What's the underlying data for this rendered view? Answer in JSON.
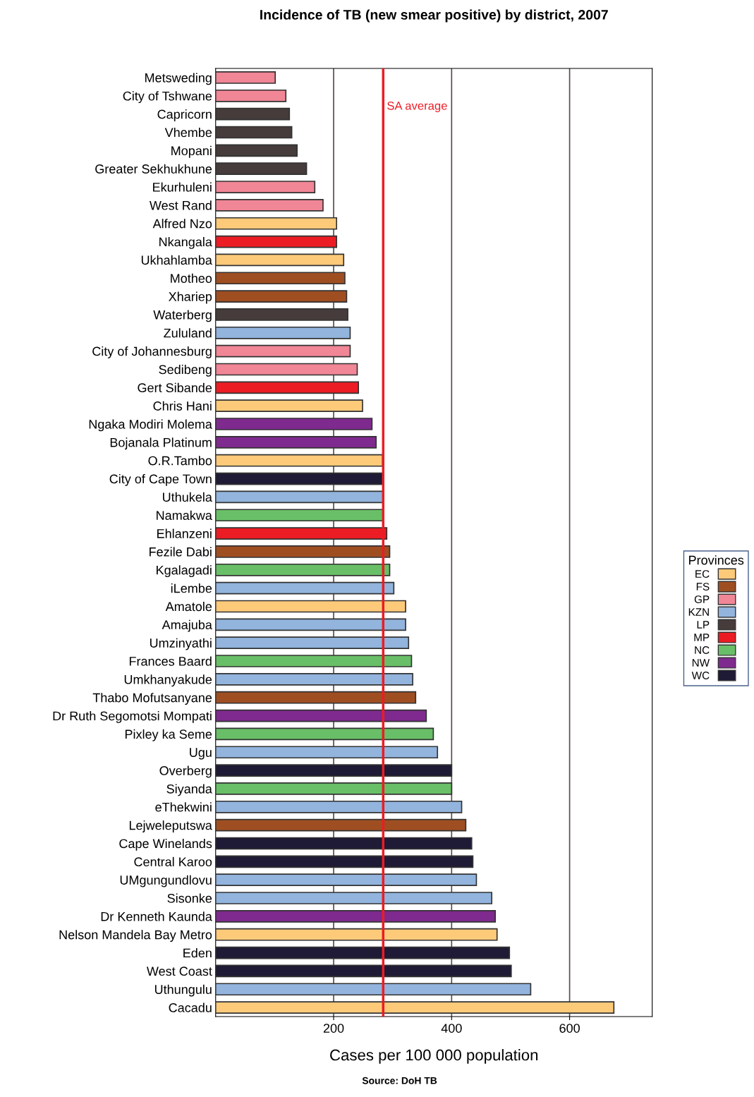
{
  "chart_data": {
    "type": "bar",
    "orientation": "horizontal",
    "title": "Incidence of TB (new smear positive) by district, 2007",
    "xlabel": "Cases per 100 000 population",
    "legend_title": "Provinces",
    "legend": "right",
    "grid": "x",
    "xlim": [
      0,
      740
    ],
    "xticks": [
      200,
      400,
      600
    ],
    "categories": [
      "Metsweding",
      "City of Tshwane",
      "Capricorn",
      "Vhembe",
      "Mopani",
      "Greater Sekhukhune",
      "Ekurhuleni",
      "West Rand",
      "Alfred Nzo",
      "Nkangala",
      "Ukhahlamba",
      "Motheo",
      "Xhariep",
      "Waterberg",
      "Zululand",
      "City of Johannesburg",
      "Sedibeng",
      "Gert Sibande",
      "Chris Hani",
      "Ngaka Modiri Molema",
      "Bojanala Platinum",
      "O.R.Tambo",
      "City of Cape Town",
      "Uthukela",
      "Namakwa",
      "Ehlanzeni",
      "Fezile Dabi",
      "Kgalagadi",
      "iLembe",
      "Amatole",
      "Amajuba",
      "Umzinyathi",
      "Frances Baard",
      "Umkhanyakude",
      "Thabo Mofutsanyane",
      "Dr Ruth Segomotsi Mompati",
      "Pixley ka Seme",
      "Ugu",
      "Overberg",
      "Siyanda",
      "eThekwini",
      "Lejweleputswa",
      "Cape Winelands",
      "Central Karoo",
      "UMgungundlovu",
      "Sisonke",
      "Dr Kenneth Kaunda",
      "Nelson Mandela Bay Metro",
      "Eden",
      "West Coast",
      "Uthungulu",
      "Cacadu"
    ],
    "series": [
      {
        "name": "EC",
        "color": "#fdca7a",
        "values": [
          null,
          null,
          null,
          null,
          null,
          null,
          null,
          null,
          205,
          null,
          217,
          null,
          null,
          null,
          null,
          null,
          null,
          null,
          249,
          null,
          null,
          283,
          null,
          null,
          null,
          null,
          null,
          null,
          null,
          322,
          null,
          null,
          null,
          null,
          null,
          null,
          null,
          null,
          null,
          null,
          null,
          null,
          null,
          null,
          null,
          null,
          null,
          477,
          null,
          null,
          null,
          675
        ]
      },
      {
        "name": "FS",
        "color": "#9f4e22",
        "values": [
          null,
          null,
          null,
          null,
          null,
          null,
          null,
          null,
          null,
          null,
          null,
          219,
          222,
          null,
          null,
          null,
          null,
          null,
          null,
          null,
          null,
          null,
          null,
          null,
          null,
          null,
          295,
          null,
          null,
          null,
          null,
          null,
          null,
          null,
          339,
          null,
          null,
          null,
          null,
          null,
          null,
          424,
          null,
          null,
          null,
          null,
          null,
          null,
          null,
          null,
          null,
          null
        ]
      },
      {
        "name": "GP",
        "color": "#f08696",
        "values": [
          101,
          119,
          null,
          null,
          null,
          null,
          168,
          182,
          null,
          null,
          null,
          null,
          null,
          null,
          null,
          228,
          240,
          null,
          null,
          null,
          null,
          null,
          null,
          null,
          null,
          null,
          null,
          null,
          null,
          null,
          null,
          null,
          null,
          null,
          null,
          null,
          null,
          null,
          null,
          null,
          null,
          null,
          null,
          null,
          null,
          null,
          null,
          null,
          null,
          null,
          null,
          null
        ]
      },
      {
        "name": "KZN",
        "color": "#92b4dd",
        "values": [
          null,
          null,
          null,
          null,
          null,
          null,
          null,
          null,
          null,
          null,
          null,
          null,
          null,
          null,
          228,
          null,
          null,
          null,
          null,
          null,
          null,
          null,
          null,
          285,
          null,
          null,
          null,
          null,
          302,
          null,
          322,
          327,
          null,
          334,
          null,
          null,
          null,
          376,
          null,
          null,
          417,
          null,
          null,
          null,
          442,
          468,
          null,
          null,
          null,
          null,
          534,
          null
        ]
      },
      {
        "name": "LP",
        "color": "#453c3b",
        "values": [
          null,
          null,
          125,
          129,
          138,
          154,
          null,
          null,
          null,
          null,
          null,
          null,
          null,
          224,
          null,
          null,
          null,
          null,
          null,
          null,
          null,
          null,
          null,
          null,
          null,
          null,
          null,
          null,
          null,
          null,
          null,
          null,
          null,
          null,
          null,
          null,
          null,
          null,
          null,
          null,
          null,
          null,
          null,
          null,
          null,
          null,
          null,
          null,
          null,
          null,
          null,
          null
        ]
      },
      {
        "name": "MP",
        "color": "#ec1c24",
        "values": [
          null,
          null,
          null,
          null,
          null,
          null,
          null,
          null,
          null,
          205,
          null,
          null,
          null,
          null,
          null,
          null,
          null,
          242,
          null,
          null,
          null,
          null,
          null,
          null,
          null,
          290,
          null,
          null,
          null,
          null,
          null,
          null,
          null,
          null,
          null,
          null,
          null,
          null,
          null,
          null,
          null,
          null,
          null,
          null,
          null,
          null,
          null,
          null,
          null,
          null,
          null,
          null
        ]
      },
      {
        "name": "NC",
        "color": "#69bf67",
        "values": [
          null,
          null,
          null,
          null,
          null,
          null,
          null,
          null,
          null,
          null,
          null,
          null,
          null,
          null,
          null,
          null,
          null,
          null,
          null,
          null,
          null,
          null,
          null,
          null,
          285,
          null,
          null,
          295,
          null,
          null,
          null,
          null,
          332,
          null,
          null,
          null,
          369,
          null,
          null,
          400,
          null,
          null,
          null,
          null,
          null,
          null,
          null,
          null,
          null,
          null,
          null,
          null
        ]
      },
      {
        "name": "NW",
        "color": "#7f2a8e",
        "values": [
          null,
          null,
          null,
          null,
          null,
          null,
          null,
          null,
          null,
          null,
          null,
          null,
          null,
          null,
          null,
          null,
          null,
          null,
          null,
          265,
          272,
          null,
          null,
          null,
          null,
          null,
          null,
          null,
          null,
          null,
          null,
          null,
          null,
          null,
          null,
          357,
          null,
          null,
          null,
          null,
          null,
          null,
          null,
          null,
          null,
          null,
          474,
          null,
          null,
          null,
          null,
          null
        ]
      },
      {
        "name": "WC",
        "color": "#1f1a35",
        "values": [
          null,
          null,
          null,
          null,
          null,
          null,
          null,
          null,
          null,
          null,
          null,
          null,
          null,
          null,
          null,
          null,
          null,
          null,
          null,
          null,
          null,
          null,
          284,
          null,
          null,
          null,
          null,
          null,
          null,
          null,
          null,
          null,
          null,
          null,
          null,
          null,
          null,
          null,
          400,
          null,
          null,
          null,
          434,
          436,
          null,
          null,
          null,
          null,
          498,
          501,
          null,
          null
        ]
      }
    ],
    "ref_lines": [
      {
        "axis": "x",
        "value": 284,
        "label": "SA average",
        "color": "#ec1c24",
        "line_style": "solid"
      }
    ],
    "annotations": [
      "Source: DoH TB"
    ]
  }
}
